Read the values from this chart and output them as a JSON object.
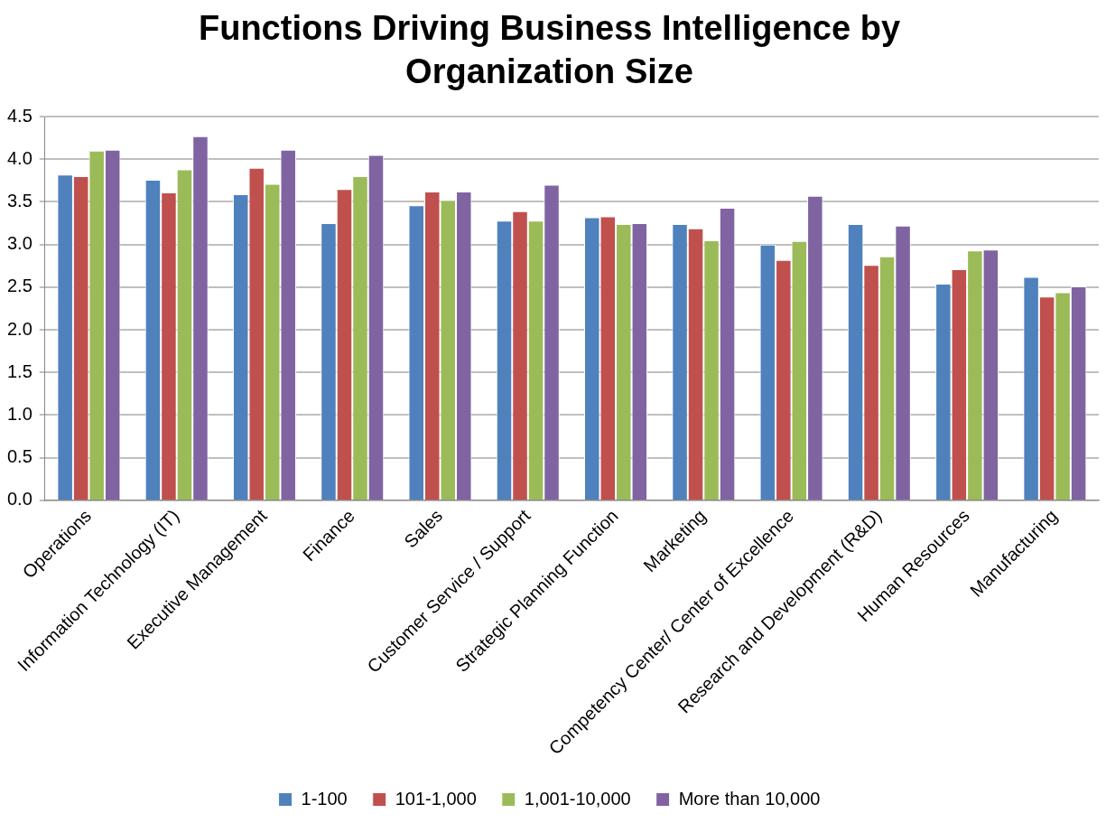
{
  "chart_data": {
    "type": "bar",
    "title": "Functions Driving Business Intelligence by Organization Size",
    "categories": [
      "Operations",
      "Information Technology (IT)",
      "Executive Management",
      "Finance",
      "Sales",
      "Customer Service / Support",
      "Strategic Planning Function",
      "Marketing",
      "Competency Center/ Center of Excellence",
      "Research and Development (R&D)",
      "Human Resources",
      "Manufacturing"
    ],
    "series": [
      {
        "name": "1-100",
        "color": "#4f81bd",
        "values": [
          3.82,
          3.76,
          3.59,
          3.25,
          3.46,
          3.28,
          3.32,
          3.24,
          3.0,
          3.24,
          2.54,
          2.62
        ]
      },
      {
        "name": "101-1,000",
        "color": "#c0504d",
        "values": [
          3.8,
          3.61,
          3.9,
          3.65,
          3.62,
          3.39,
          3.33,
          3.19,
          2.82,
          2.76,
          2.71,
          2.39
        ]
      },
      {
        "name": "1,001-10,000",
        "color": "#9bbb59",
        "values": [
          4.1,
          3.88,
          3.71,
          3.8,
          3.52,
          3.28,
          3.24,
          3.05,
          3.04,
          2.86,
          2.93,
          2.44
        ]
      },
      {
        "name": "More than 10,000",
        "color": "#8064a2",
        "values": [
          4.11,
          4.27,
          4.11,
          4.05,
          3.62,
          3.7,
          3.25,
          3.43,
          3.57,
          3.22,
          2.94,
          2.51
        ]
      }
    ],
    "ylim": [
      0,
      4.5
    ],
    "yticks": [
      {
        "value": 0,
        "label": "0.0"
      },
      {
        "value": 0.5,
        "label": "0.5"
      },
      {
        "value": 1,
        "label": "1.0"
      },
      {
        "value": 1.5,
        "label": "1.5"
      },
      {
        "value": 2,
        "label": "2.0"
      },
      {
        "value": 2.5,
        "label": "2.5"
      },
      {
        "value": 3,
        "label": "3.0"
      },
      {
        "value": 3.5,
        "label": "3.5"
      },
      {
        "value": 4,
        "label": "4.0"
      },
      {
        "value": 4.5,
        "label": "4.5"
      }
    ],
    "grid": "y",
    "legend": "bottom"
  }
}
